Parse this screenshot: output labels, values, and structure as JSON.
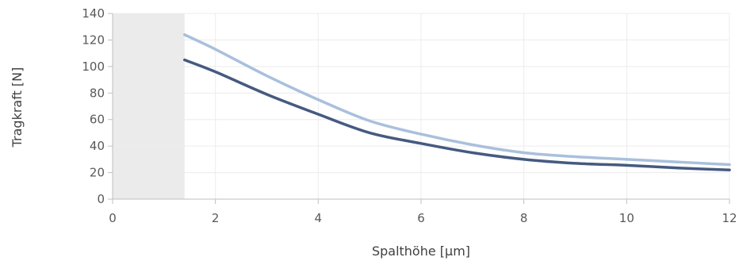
{
  "chart_data": {
    "type": "line",
    "xlabel": "Spalthöhe [µm]",
    "ylabel": "Tragkraft [N]",
    "xlim": [
      0,
      12
    ],
    "ylim": [
      0,
      140
    ],
    "xticks": [
      0,
      2,
      4,
      6,
      8,
      10,
      12
    ],
    "yticks": [
      0,
      20,
      40,
      60,
      80,
      100,
      120,
      140
    ],
    "x_tick_labels": [
      "0",
      "2",
      "4",
      "6",
      "8",
      "10",
      "12"
    ],
    "y_tick_labels": [
      "0",
      "20",
      "40",
      "60",
      "80",
      "100",
      "120",
      "140"
    ],
    "grid": true,
    "shaded_region": {
      "x_from": 0,
      "x_to": 1.4,
      "color": "#ebebeb"
    },
    "series": [
      {
        "color": "#a9c0dc",
        "points": [
          [
            1.4,
            124
          ],
          [
            2,
            113
          ],
          [
            3,
            93
          ],
          [
            4,
            75
          ],
          [
            5,
            59
          ],
          [
            6,
            49
          ],
          [
            7,
            41
          ],
          [
            8,
            35
          ],
          [
            9,
            32
          ],
          [
            10,
            30
          ],
          [
            11,
            28
          ],
          [
            12,
            26
          ]
        ]
      },
      {
        "color": "#455a80",
        "points": [
          [
            1.4,
            105
          ],
          [
            2,
            96
          ],
          [
            3,
            79
          ],
          [
            4,
            64
          ],
          [
            5,
            50
          ],
          [
            6,
            42
          ],
          [
            7,
            35
          ],
          [
            8,
            30
          ],
          [
            9,
            27
          ],
          [
            10,
            25.5
          ],
          [
            11,
            23.5
          ],
          [
            12,
            22
          ]
        ]
      }
    ]
  }
}
